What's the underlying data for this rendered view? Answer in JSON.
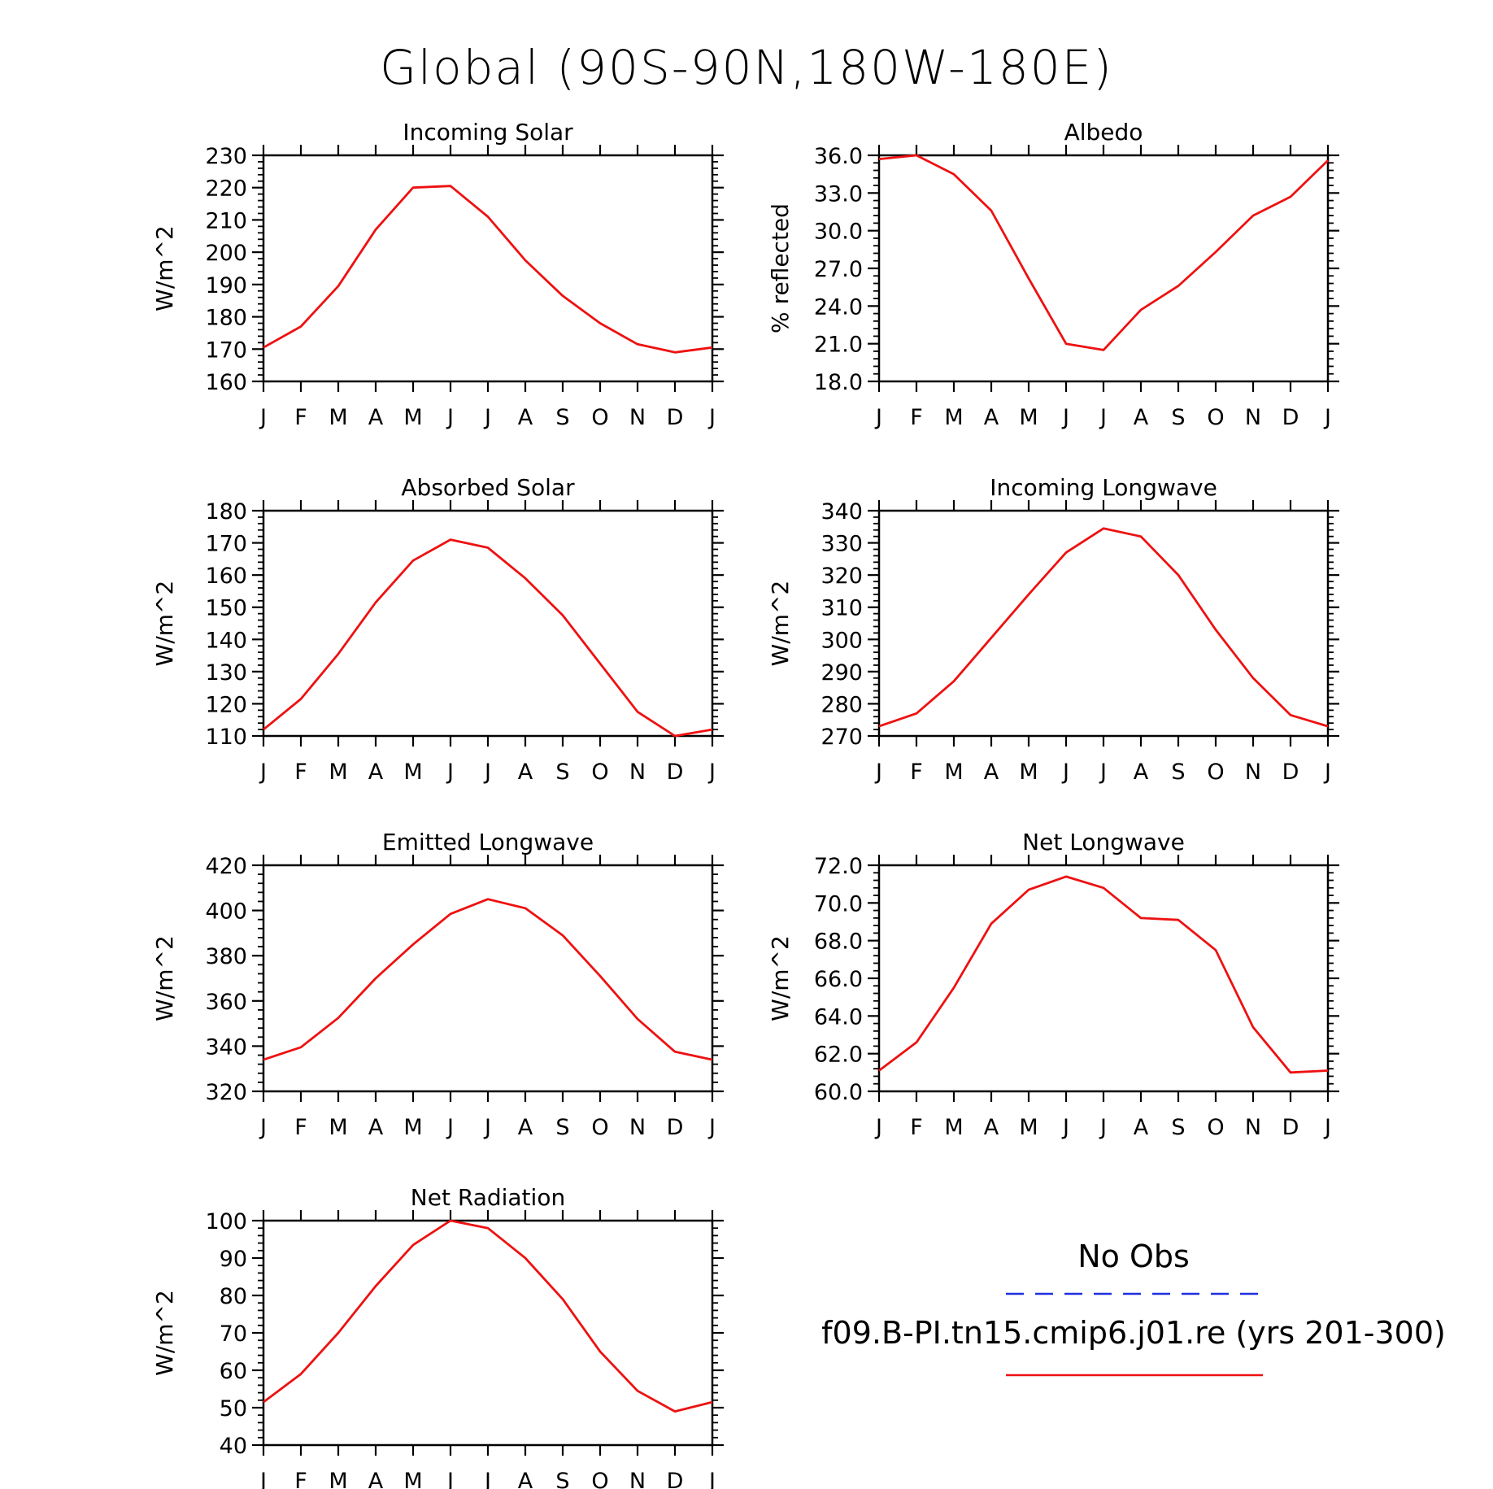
{
  "page_title": "Global (90S-90N,180W-180E)",
  "legend": {
    "entries": [
      {
        "label": "No Obs",
        "color": "#1f2fe0",
        "dash": true
      },
      {
        "label": "f09.B-PI.tn15.cmip6.j01.re (yrs 201-300)",
        "color": "#ee1111",
        "dash": false
      }
    ]
  },
  "chart_data": [
    {
      "type": "line",
      "title": "Incoming Solar",
      "xlabel": "",
      "ylabel": "W/m^2",
      "categories": [
        "J",
        "F",
        "M",
        "A",
        "M",
        "J",
        "J",
        "A",
        "S",
        "O",
        "N",
        "D",
        "J"
      ],
      "ylim": [
        160,
        230
      ],
      "yticks": [
        160,
        170,
        180,
        190,
        200,
        210,
        220,
        230
      ],
      "tick_decimals": 0,
      "series": [
        {
          "color": "#ee1111",
          "values": [
            170.5,
            177,
            189.5,
            207,
            220,
            220.5,
            211,
            197.5,
            186.5,
            178,
            171.5,
            169,
            170.5
          ]
        }
      ]
    },
    {
      "type": "line",
      "title": "Albedo",
      "xlabel": "",
      "ylabel": "% reflected",
      "categories": [
        "J",
        "F",
        "M",
        "A",
        "M",
        "J",
        "J",
        "A",
        "S",
        "O",
        "N",
        "D",
        "J"
      ],
      "ylim": [
        18,
        36
      ],
      "yticks": [
        18,
        21,
        24,
        27,
        30,
        33,
        36
      ],
      "tick_decimals": 1,
      "series": [
        {
          "color": "#ee1111",
          "values": [
            35.7,
            36.0,
            34.5,
            31.6,
            26.2,
            21.0,
            20.5,
            23.7,
            25.6,
            28.3,
            31.2,
            32.7,
            35.6
          ]
        }
      ]
    },
    {
      "type": "line",
      "title": "Absorbed Solar",
      "xlabel": "",
      "ylabel": "W/m^2",
      "categories": [
        "J",
        "F",
        "M",
        "A",
        "M",
        "J",
        "J",
        "A",
        "S",
        "O",
        "N",
        "D",
        "J"
      ],
      "ylim": [
        110,
        180
      ],
      "yticks": [
        110,
        120,
        130,
        140,
        150,
        160,
        170,
        180
      ],
      "tick_decimals": 0,
      "series": [
        {
          "color": "#ee1111",
          "values": [
            112,
            121.5,
            135.5,
            151.5,
            164.5,
            171,
            168.5,
            159,
            147.5,
            132.5,
            117.5,
            110,
            112
          ]
        }
      ]
    },
    {
      "type": "line",
      "title": "Incoming Longwave",
      "xlabel": "",
      "ylabel": "W/m^2",
      "categories": [
        "J",
        "F",
        "M",
        "A",
        "M",
        "J",
        "J",
        "A",
        "S",
        "O",
        "N",
        "D",
        "J"
      ],
      "ylim": [
        270,
        340
      ],
      "yticks": [
        270,
        280,
        290,
        300,
        310,
        320,
        330,
        340
      ],
      "tick_decimals": 0,
      "series": [
        {
          "color": "#ee1111",
          "values": [
            273,
            277,
            287,
            300.5,
            314,
            327,
            334.5,
            332,
            320,
            303,
            288,
            276.5,
            273
          ]
        }
      ]
    },
    {
      "type": "line",
      "title": "Emitted Longwave",
      "xlabel": "",
      "ylabel": "W/m^2",
      "categories": [
        "J",
        "F",
        "M",
        "A",
        "M",
        "J",
        "J",
        "A",
        "S",
        "O",
        "N",
        "D",
        "J"
      ],
      "ylim": [
        320,
        420
      ],
      "yticks": [
        320,
        340,
        360,
        380,
        400,
        420
      ],
      "tick_decimals": 0,
      "series": [
        {
          "color": "#ee1111",
          "values": [
            334,
            339.5,
            352.5,
            370,
            385,
            398.5,
            405,
            401,
            389,
            371,
            352,
            337.5,
            334
          ]
        }
      ]
    },
    {
      "type": "line",
      "title": "Net Longwave",
      "xlabel": "",
      "ylabel": "W/m^2",
      "categories": [
        "J",
        "F",
        "M",
        "A",
        "M",
        "J",
        "J",
        "A",
        "S",
        "O",
        "N",
        "D",
        "J"
      ],
      "ylim": [
        60,
        72
      ],
      "yticks": [
        60,
        62,
        64,
        66,
        68,
        70,
        72
      ],
      "tick_decimals": 1,
      "series": [
        {
          "color": "#ee1111",
          "values": [
            61.1,
            62.6,
            65.5,
            68.9,
            70.7,
            71.4,
            70.8,
            69.2,
            69.1,
            67.5,
            63.4,
            61.0,
            61.1
          ]
        }
      ]
    },
    {
      "type": "line",
      "title": "Net Radiation",
      "xlabel": "",
      "ylabel": "W/m^2",
      "categories": [
        "J",
        "F",
        "M",
        "A",
        "M",
        "J",
        "J",
        "A",
        "S",
        "O",
        "N",
        "D",
        "J"
      ],
      "ylim": [
        40,
        100
      ],
      "yticks": [
        40,
        50,
        60,
        70,
        80,
        90,
        100
      ],
      "tick_decimals": 0,
      "series": [
        {
          "color": "#ee1111",
          "values": [
            51.5,
            59,
            70,
            82.5,
            93.5,
            100,
            98,
            90,
            79,
            65,
            54.5,
            49,
            51.5
          ]
        }
      ]
    }
  ]
}
